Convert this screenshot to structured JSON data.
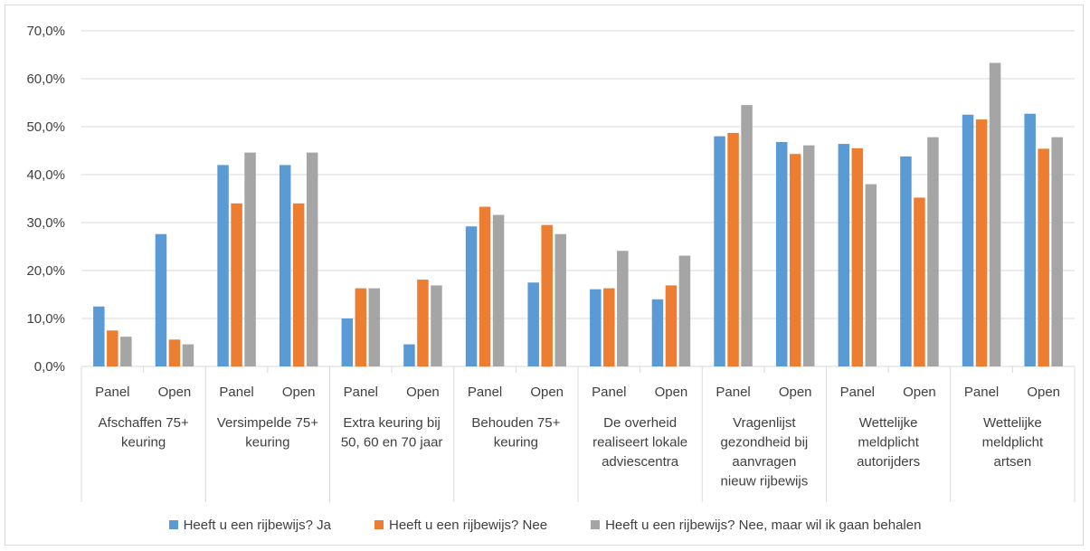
{
  "chart_data": {
    "type": "bar",
    "y_tick_labels": [
      "0,0%",
      "10,0%",
      "20,0%",
      "30,0%",
      "40,0%",
      "50,0%",
      "60,0%",
      "70,0%"
    ],
    "ylim": [
      0,
      70
    ],
    "grid": true,
    "legend_position": "bottom",
    "groups": [
      {
        "label": [
          "Afschaffen 75+",
          "keuring"
        ],
        "sub": [
          "Panel",
          "Open"
        ]
      },
      {
        "label": [
          "Versimpelde 75+",
          "keuring"
        ],
        "sub": [
          "Panel",
          "Open"
        ]
      },
      {
        "label": [
          "Extra keuring bij",
          "50, 60 en 70 jaar"
        ],
        "sub": [
          "Panel",
          "Open"
        ]
      },
      {
        "label": [
          "Behouden 75+",
          "keuring"
        ],
        "sub": [
          "Panel",
          "Open"
        ]
      },
      {
        "label": [
          "De overheid",
          "realiseert lokale",
          "adviescentra"
        ],
        "sub": [
          "Panel",
          "Open"
        ]
      },
      {
        "label": [
          "Vragenlijst",
          "gezondheid bij",
          "aanvragen",
          "nieuw rijbewijs"
        ],
        "sub": [
          "Panel",
          "Open"
        ]
      },
      {
        "label": [
          "Wettelijke",
          "meldplicht",
          "autorijders"
        ],
        "sub": [
          "Panel",
          "Open"
        ]
      },
      {
        "label": [
          "Wettelijke",
          "meldplicht",
          "artsen"
        ],
        "sub": [
          "Panel",
          "Open"
        ]
      }
    ],
    "series": [
      {
        "name": "Heeft u een rijbewijs? Ja",
        "color": "#5b9bd5",
        "values": [
          12.5,
          27.6,
          42.0,
          42.0,
          10.0,
          4.6,
          29.2,
          17.5,
          16.1,
          14.0,
          48.0,
          46.8,
          46.4,
          43.8,
          52.5,
          52.7
        ]
      },
      {
        "name": "Heeft u een rijbewijs? Nee",
        "color": "#ed7d31",
        "values": [
          7.5,
          5.6,
          34.0,
          34.0,
          16.3,
          18.1,
          33.3,
          29.5,
          16.3,
          16.9,
          48.7,
          44.3,
          45.5,
          35.2,
          51.5,
          45.4
        ]
      },
      {
        "name": "Heeft u een rijbewijs? Nee, maar wil ik gaan behalen",
        "color": "#a5a5a5",
        "values": [
          6.2,
          4.6,
          44.6,
          44.6,
          16.3,
          16.9,
          31.6,
          27.6,
          24.1,
          23.1,
          54.5,
          46.1,
          38.0,
          47.8,
          63.3,
          47.8
        ]
      }
    ]
  }
}
